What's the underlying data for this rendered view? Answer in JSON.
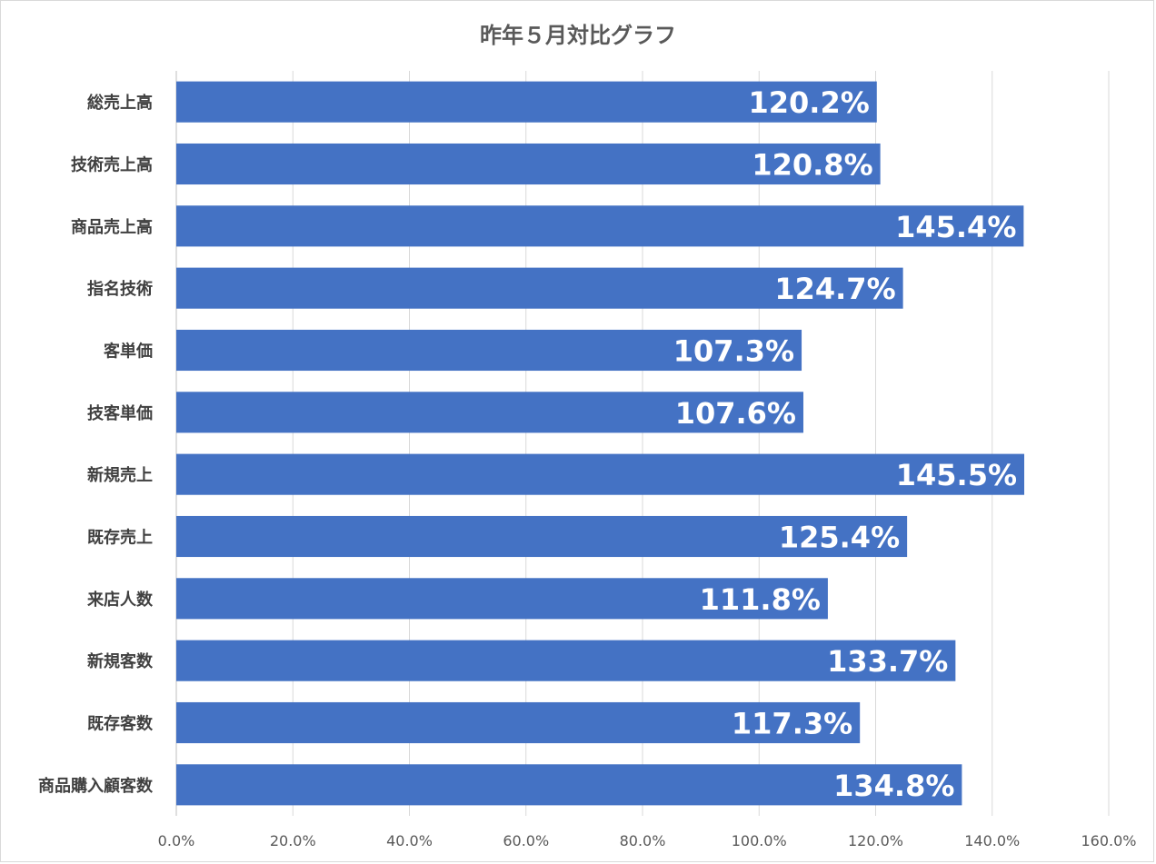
{
  "chart_data": {
    "type": "bar",
    "orientation": "horizontal",
    "title": "昨年５月対比グラフ",
    "categories": [
      "総売上高",
      "技術売上高",
      "商品売上高",
      "指名技術",
      "客単価",
      "技客単価",
      "新規売上",
      "既存売上",
      "来店人数",
      "新規客数",
      "既存客数",
      "商品購入顧客数"
    ],
    "values": [
      120.2,
      120.8,
      145.4,
      124.7,
      107.3,
      107.6,
      145.5,
      125.4,
      111.8,
      133.7,
      117.3,
      134.8
    ],
    "data_labels": [
      "120.2%",
      "120.8%",
      "145.4%",
      "124.7%",
      "107.3%",
      "107.6%",
      "145.5%",
      "125.4%",
      "111.8%",
      "133.7%",
      "117.3%",
      "134.8%"
    ],
    "xlim": [
      0,
      160
    ],
    "x_ticks": [
      0,
      20,
      40,
      60,
      80,
      100,
      120,
      140,
      160
    ],
    "x_tick_labels": [
      "0.0%",
      "20.0%",
      "40.0%",
      "60.0%",
      "80.0%",
      "100.0%",
      "120.0%",
      "140.0%",
      "160.0%"
    ],
    "bar_color": "#4472c4",
    "grid": true,
    "legend": "none",
    "xlabel": "",
    "ylabel": ""
  }
}
